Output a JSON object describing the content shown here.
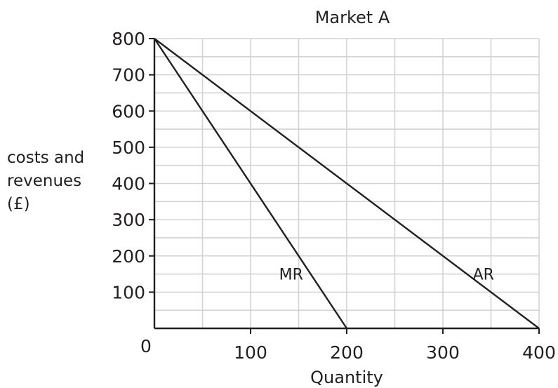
{
  "chart_data": {
    "type": "line",
    "title": "Market A",
    "xlabel": "Quantity",
    "ylabel_lines": [
      "costs and",
      "revenues",
      "(£)"
    ],
    "origin_label": "0",
    "xlim": [
      0,
      400
    ],
    "ylim": [
      0,
      800
    ],
    "x_ticks": [
      100,
      200,
      300,
      400
    ],
    "y_ticks": [
      100,
      200,
      300,
      400,
      500,
      600,
      700,
      800
    ],
    "x_tick_labels": [
      "100",
      "200",
      "300",
      "400"
    ],
    "y_tick_labels": [
      "100",
      "200",
      "300",
      "400",
      "500",
      "600",
      "700",
      "800"
    ],
    "grid": {
      "on": true,
      "x_step": 50,
      "y_step": 50
    },
    "series": [
      {
        "name": "MR",
        "x": [
          0,
          200
        ],
        "y": [
          800,
          0
        ]
      },
      {
        "name": "AR",
        "x": [
          0,
          400
        ],
        "y": [
          800,
          0
        ]
      }
    ],
    "series_label_anchors": [
      {
        "name": "MR",
        "x": 148,
        "y": 150
      },
      {
        "name": "AR",
        "x": 348,
        "y": 150
      }
    ],
    "colors": {
      "line": "#231f20",
      "grid": "#d2d3d5",
      "text": "#231f20"
    }
  }
}
